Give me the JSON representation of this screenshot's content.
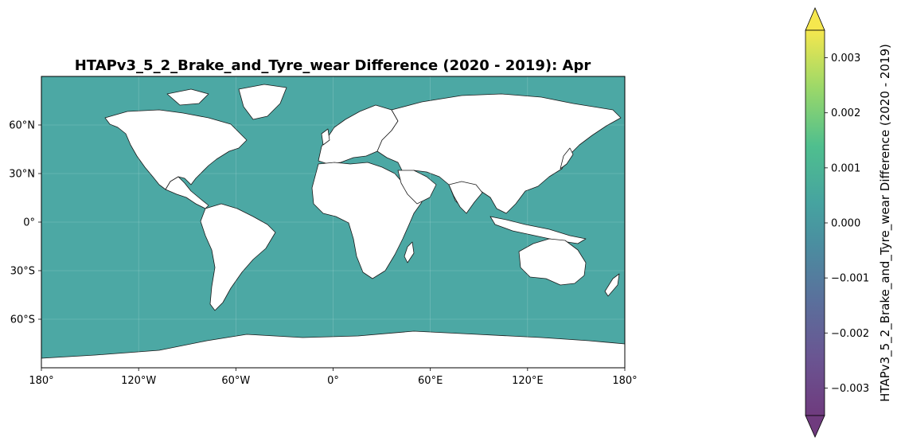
{
  "map": {
    "title": "HTAPv3_5_2_Brake_and_Tyre_wear Difference (2020 - 2019): Apr",
    "projection": "PlateCarree",
    "ocean_color": "#4ca8a4",
    "land_color": "#ffffff",
    "coastline_color": "#000000",
    "gridlines": true,
    "lat_ticks": [
      {
        "value": 60,
        "label": "60°N"
      },
      {
        "value": 30,
        "label": "30°N"
      },
      {
        "value": 0,
        "label": "0°"
      },
      {
        "value": -30,
        "label": "30°S"
      },
      {
        "value": -60,
        "label": "60°S"
      }
    ],
    "lon_ticks": [
      {
        "value": -180,
        "label": "180°"
      },
      {
        "value": -120,
        "label": "120°W"
      },
      {
        "value": -60,
        "label": "60°W"
      },
      {
        "value": 0,
        "label": "0°"
      },
      {
        "value": 60,
        "label": "60°E"
      },
      {
        "value": 120,
        "label": "120°E"
      },
      {
        "value": 180,
        "label": "180°"
      }
    ]
  },
  "colorbar": {
    "label": "HTAPv3_5_2_Brake_and_Tyre_wear Difference (2020 - 2019)",
    "colormap": "viridis",
    "range": [
      -0.0035,
      0.0035
    ],
    "extend": "both",
    "ticks": [
      {
        "value": 0.003,
        "label": "0.003"
      },
      {
        "value": 0.002,
        "label": "0.002"
      },
      {
        "value": 0.001,
        "label": "0.001"
      },
      {
        "value": 0.0,
        "label": "0.000"
      },
      {
        "value": -0.001,
        "label": "−0.001"
      },
      {
        "value": -0.002,
        "label": "−0.002"
      },
      {
        "value": -0.003,
        "label": "−0.003"
      }
    ]
  }
}
